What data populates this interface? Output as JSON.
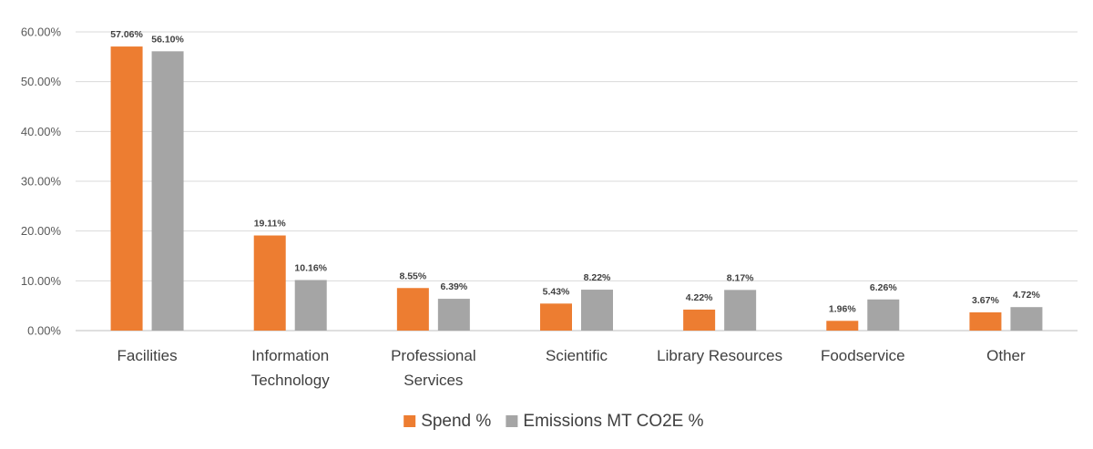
{
  "chart_data": {
    "type": "bar",
    "categories": [
      [
        "Facilities"
      ],
      [
        "Information",
        "Technology"
      ],
      [
        "Professional",
        "Services"
      ],
      [
        "Scientific"
      ],
      [
        "Library Resources"
      ],
      [
        "Foodservice"
      ],
      [
        "Other"
      ]
    ],
    "series": [
      {
        "name": "Spend %",
        "color": "#ed7d31",
        "values": [
          57.06,
          19.11,
          8.55,
          5.43,
          4.22,
          1.96,
          3.67
        ],
        "labels": [
          "57.06%",
          "19.11%",
          "8.55%",
          "5.43%",
          "4.22%",
          "1.96%",
          "3.67%"
        ]
      },
      {
        "name": "Emissions MT CO2E %",
        "color": "#a5a5a5",
        "values": [
          56.1,
          10.16,
          6.39,
          8.22,
          8.17,
          6.26,
          4.72
        ],
        "labels": [
          "56.10%",
          "10.16%",
          "6.39%",
          "8.22%",
          "8.17%",
          "6.26%",
          "4.72%"
        ]
      }
    ],
    "yticks": [
      "0.00%",
      "10.00%",
      "20.00%",
      "30.00%",
      "40.00%",
      "50.00%",
      "60.00%"
    ],
    "ylim": [
      0,
      60
    ],
    "grid": true,
    "legend": "bottom",
    "title": "",
    "xlabel": "",
    "ylabel": ""
  }
}
